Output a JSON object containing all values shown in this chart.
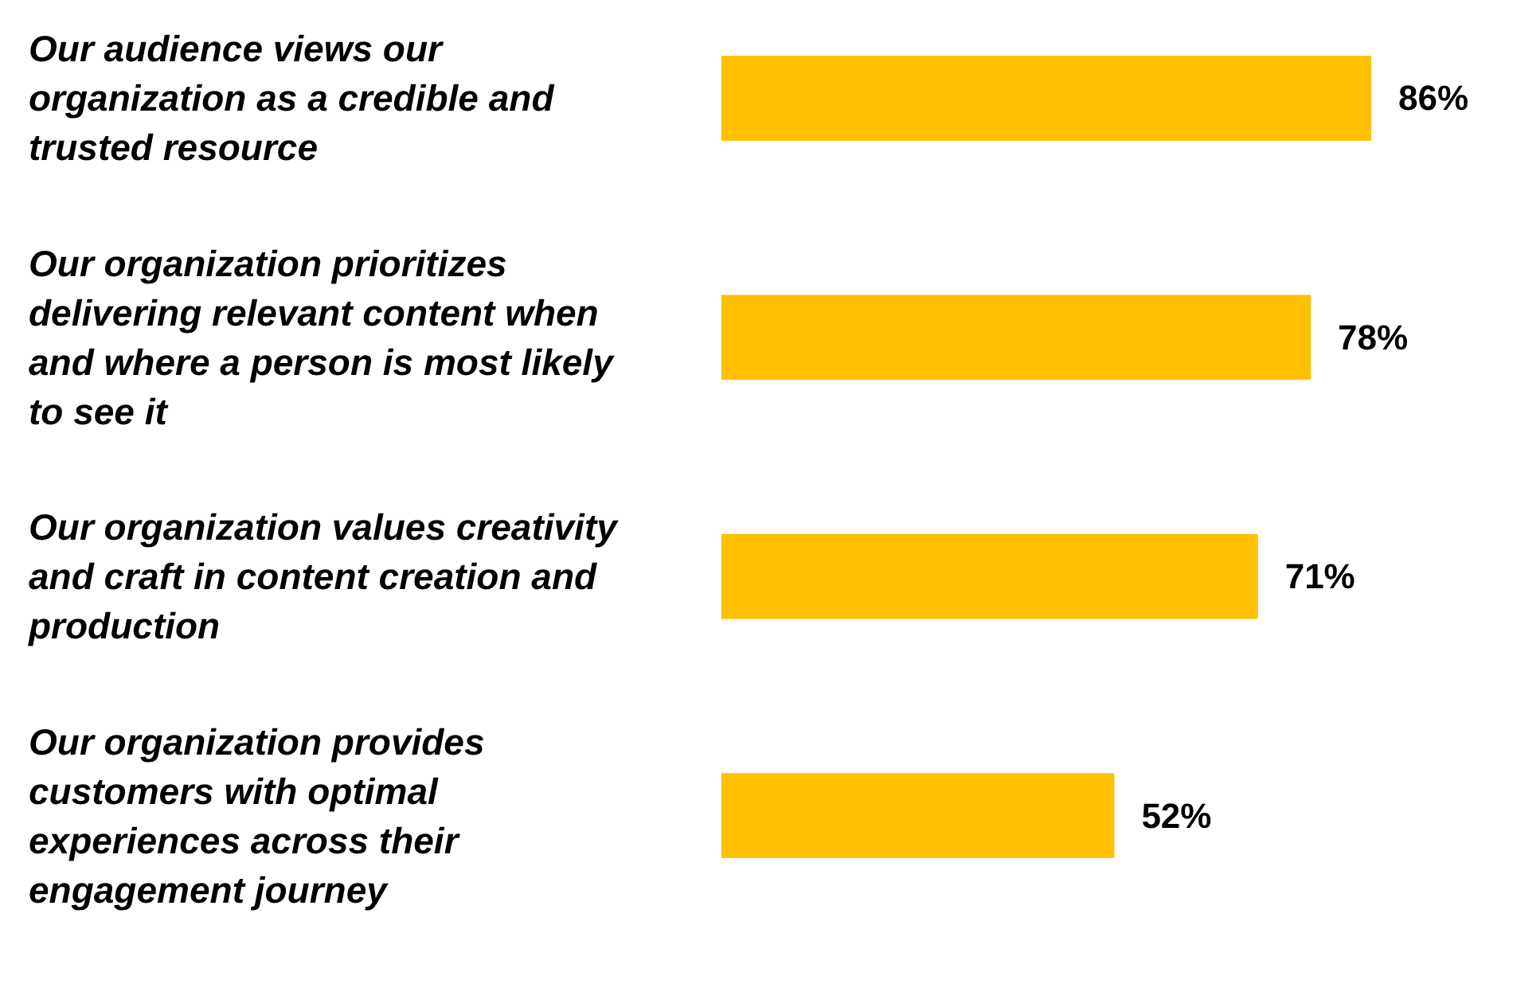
{
  "chart_data": {
    "type": "bar",
    "orientation": "horizontal",
    "categories": [
      "Our audience views our organization as a credible and trusted resource",
      "Our organization prioritizes delivering relevant content when and where a person is most likely to see it",
      "Our organization values creativity and craft in content creation and production",
      "Our organization provides customers with optimal experiences across their engagement journey"
    ],
    "values": [
      86,
      78,
      71,
      52
    ],
    "color": "#ffc000",
    "value_labels": [
      "86%",
      "78%",
      "71%",
      "52%"
    ],
    "tick_labels": "y"
  }
}
